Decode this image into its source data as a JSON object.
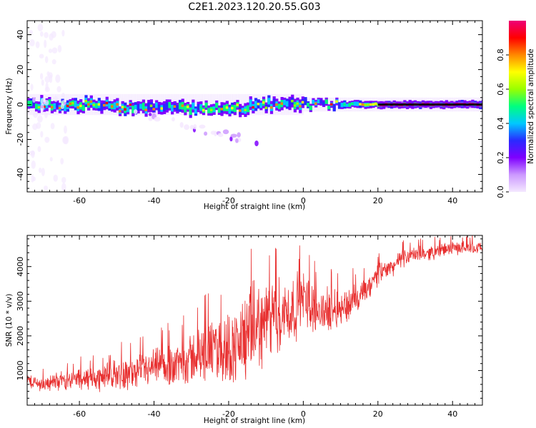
{
  "figure": {
    "title": "C2E1.2023.120.20.55.G03"
  },
  "chart_data": [
    {
      "type": "heatmap",
      "xlabel": "Height of straight line (km)",
      "ylabel": "Frequency (Hz)",
      "xlim": [
        -74,
        48
      ],
      "ylim": [
        -50,
        48
      ],
      "x_ticks": [
        -60,
        -40,
        -20,
        0,
        20,
        40
      ],
      "y_ticks": [
        -40,
        -20,
        0,
        20,
        40
      ],
      "grid": false,
      "colorbar": {
        "label": "Normalized spectral amplitude",
        "range": [
          0.0,
          1.0
        ],
        "ticks": [
          0.0,
          0.2,
          0.4,
          0.6,
          0.8
        ],
        "colormap": [
          "#f4e8ff",
          "#cc99ff",
          "#7f00ff",
          "#2a2aff",
          "#00c8ff",
          "#00ff7f",
          "#99ff00",
          "#ffff00",
          "#ff8800",
          "#ff0000",
          "#ee0077"
        ]
      },
      "band": {
        "center_hz": 0,
        "note_descending_scatter_x": [
          -45,
          -12
        ],
        "note_descending_scatter_y": [
          -5,
          -22
        ]
      }
    },
    {
      "type": "line",
      "xlabel": "Height of straight line (km)",
      "ylabel": "SNR (10 * v/v)",
      "xlim": [
        -74,
        48
      ],
      "ylim": [
        0,
        4900
      ],
      "x_ticks": [
        -60,
        -40,
        -20,
        0,
        20,
        40
      ],
      "y_ticks": [
        1000,
        2000,
        3000,
        4000
      ],
      "grid": false,
      "series": [
        {
          "color": "#e83030",
          "x": [
            -74,
            -70,
            -66,
            -62,
            -58,
            -54,
            -50,
            -46,
            -42,
            -38,
            -34,
            -30,
            -26,
            -22,
            -18,
            -16,
            -14,
            -12,
            -10,
            -8,
            -6,
            -4,
            -2,
            0,
            2,
            4,
            6,
            8,
            10,
            12,
            14,
            16,
            18,
            20,
            22,
            24,
            26,
            28,
            30,
            34,
            38,
            42,
            46,
            48
          ],
          "mean": [
            700,
            600,
            700,
            750,
            750,
            800,
            900,
            900,
            1000,
            1100,
            1200,
            1350,
            1500,
            1600,
            1700,
            1900,
            2100,
            2300,
            2400,
            2500,
            2600,
            2700,
            2800,
            3100,
            2900,
            2700,
            2700,
            2800,
            2800,
            2900,
            3000,
            3200,
            3400,
            3800,
            3900,
            4000,
            4200,
            4300,
            4350,
            4400,
            4500,
            4550,
            4550,
            4550
          ],
          "amplitude": [
            250,
            250,
            300,
            350,
            400,
            450,
            500,
            550,
            600,
            700,
            800,
            900,
            1000,
            1200,
            1300,
            1500,
            1600,
            1500,
            1400,
            1300,
            1300,
            1200,
            1100,
            1000,
            900,
            800,
            750,
            700,
            650,
            600,
            550,
            500,
            450,
            400,
            350,
            300,
            300,
            280,
            260,
            250,
            230,
            220,
            200,
            200
          ]
        }
      ]
    }
  ]
}
